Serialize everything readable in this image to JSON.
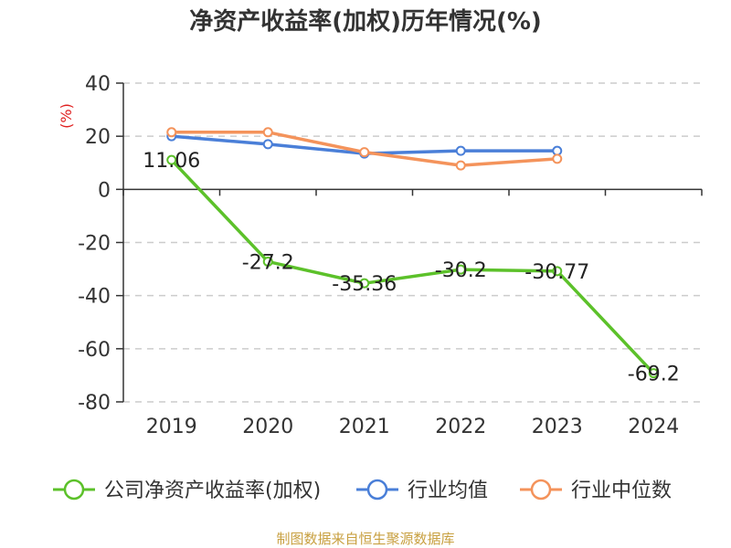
{
  "colors": {
    "company": "#5cc12a",
    "industry_avg": "#4a7fd8",
    "industry_median": "#f4935b",
    "ylabel": "#e02020",
    "source": "#c8a040",
    "grid": "#cccccc",
    "axis": "#333333"
  },
  "source_text": "制图数据来自恒生聚源数据库",
  "chart_data": {
    "type": "line",
    "title": "净资产收益率(加权)历年情况(%)",
    "xlabel": "",
    "ylabel": "(%)",
    "ylim": [
      -80,
      40
    ],
    "yticks": [
      40,
      20,
      0,
      -20,
      -40,
      -60,
      -80
    ],
    "grid": true,
    "legend_position": "bottom",
    "categories": [
      "2019",
      "2020",
      "2021",
      "2022",
      "2023",
      "2024"
    ],
    "series": [
      {
        "name": "公司净资产收益率(加权)",
        "color_key": "company",
        "values": [
          11.06,
          -27.2,
          -35.36,
          -30.2,
          -30.77,
          -69.2
        ],
        "labels": [
          "11.06",
          "-27.2",
          "-35.36",
          "-30.2",
          "-30.77",
          "-69.2"
        ]
      },
      {
        "name": "行业均值",
        "color_key": "industry_avg",
        "values": [
          20,
          17,
          13.5,
          14.5,
          14.5,
          null
        ]
      },
      {
        "name": "行业中位数",
        "color_key": "industry_median",
        "values": [
          21.5,
          21.5,
          14,
          9,
          11.5,
          null
        ]
      }
    ]
  }
}
